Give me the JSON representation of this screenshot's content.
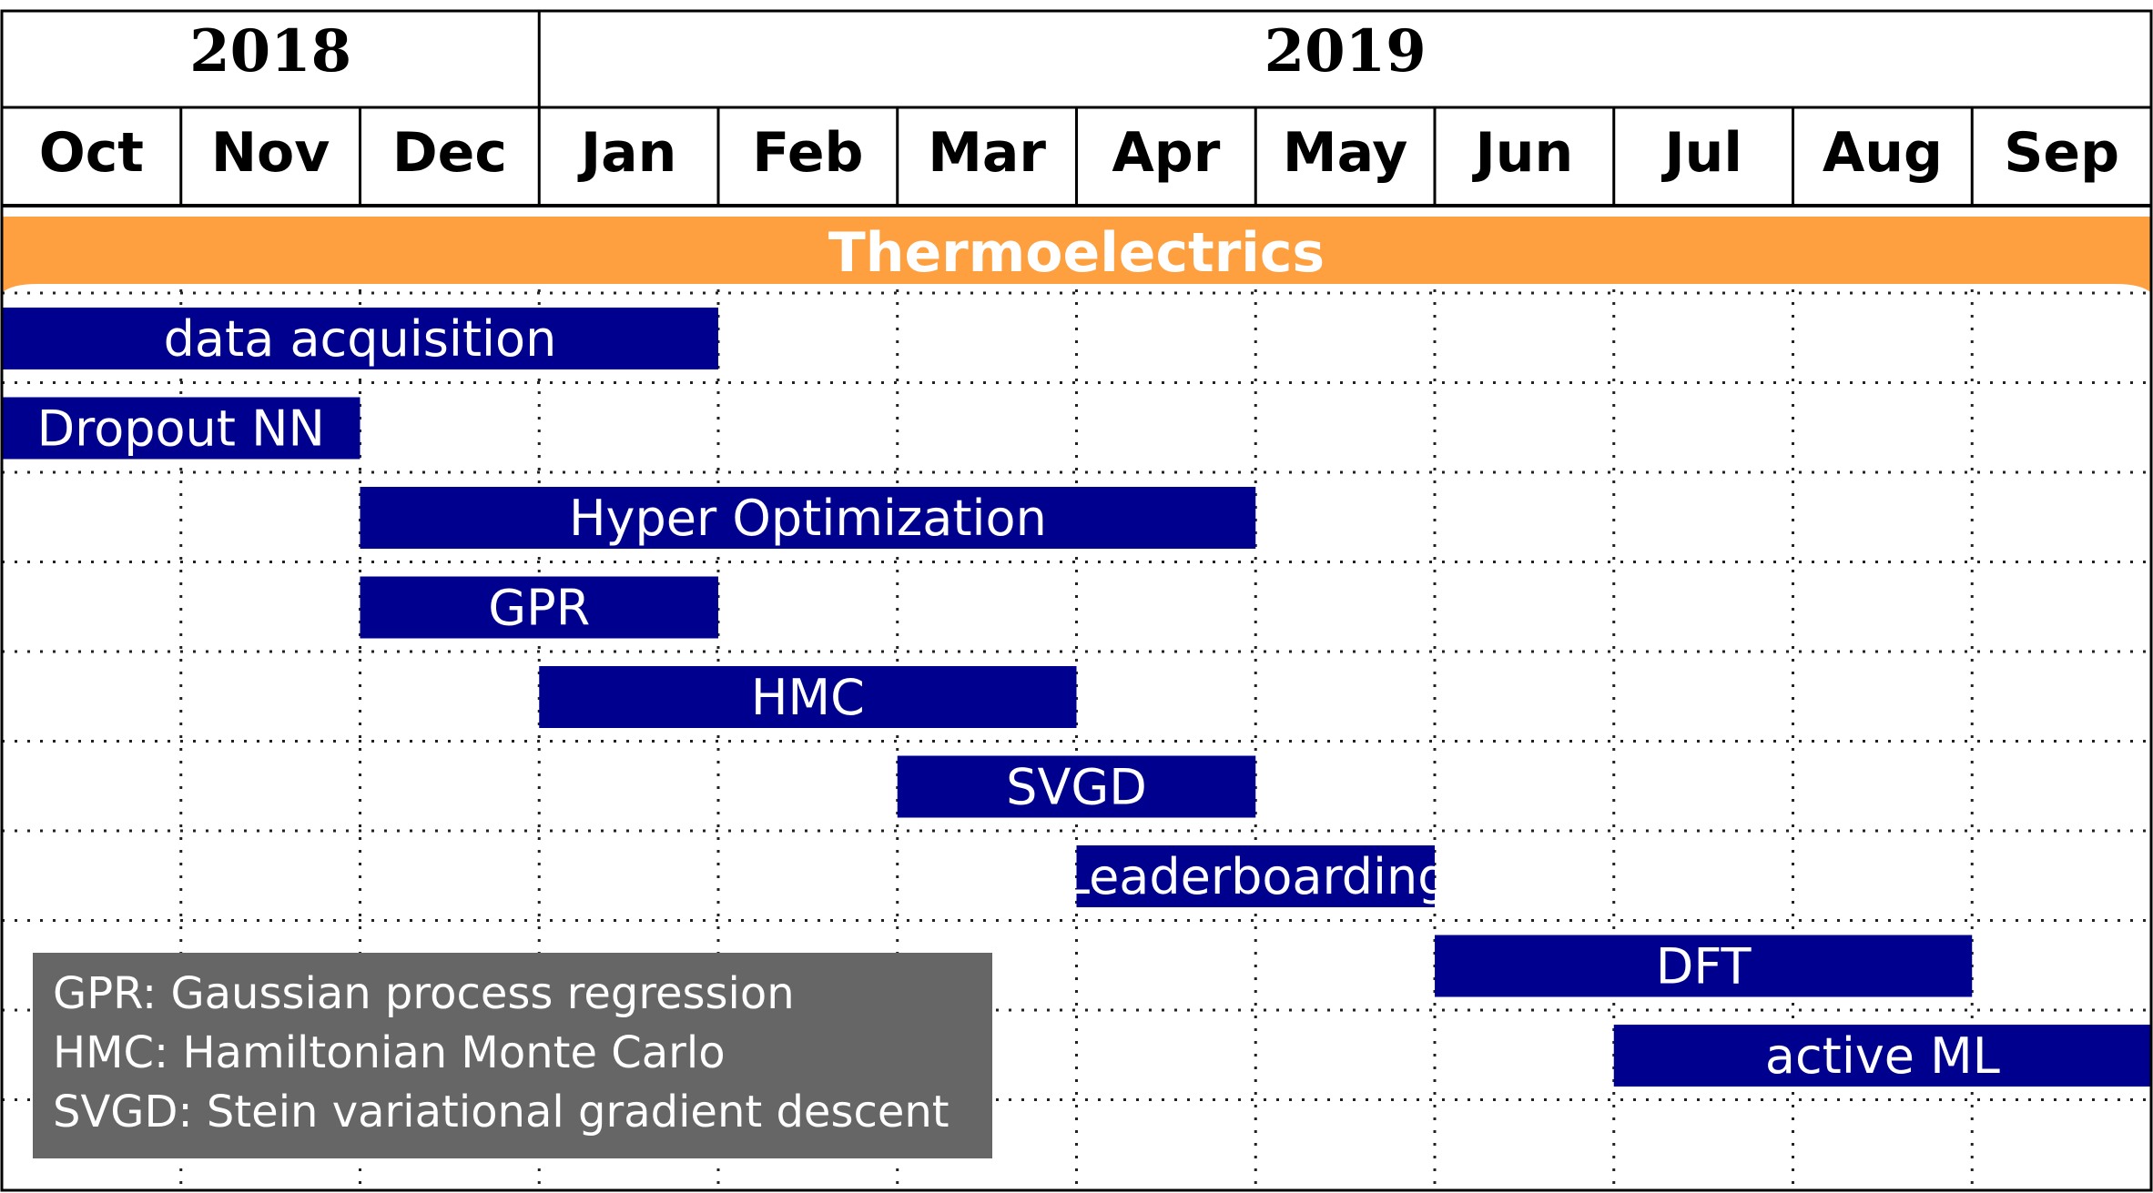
{
  "chart_data": {
    "type": "gantt",
    "years": [
      {
        "label": "2018",
        "months": 3
      },
      {
        "label": "2019",
        "months": 9
      }
    ],
    "months": [
      "Oct",
      "Nov",
      "Dec",
      "Jan",
      "Feb",
      "Mar",
      "Apr",
      "May",
      "Jun",
      "Jul",
      "Aug",
      "Sep"
    ],
    "group": {
      "label": "Thermoelectrics",
      "start": 0,
      "end": 12,
      "color": "#ffa040"
    },
    "bar_color": "#00008f",
    "tasks": [
      {
        "label": "data acquisition",
        "start": 0,
        "end": 4
      },
      {
        "label": "Dropout NN",
        "start": 0,
        "end": 2
      },
      {
        "label": "Hyper Optimization",
        "start": 2,
        "end": 7
      },
      {
        "label": "GPR",
        "start": 2,
        "end": 4
      },
      {
        "label": "HMC",
        "start": 3,
        "end": 6
      },
      {
        "label": "SVGD",
        "start": 5,
        "end": 7
      },
      {
        "label": "Leaderboarding",
        "start": 6,
        "end": 8
      },
      {
        "label": "DFT",
        "start": 8,
        "end": 11
      },
      {
        "label": "active ML",
        "start": 9,
        "end": 12
      }
    ],
    "legend": {
      "color": "#666666",
      "lines": [
        "GPR: Gaussian process regression",
        "HMC: Hamiltonian Monte Carlo",
        "SVGD: Stein variational gradient descent"
      ]
    }
  }
}
